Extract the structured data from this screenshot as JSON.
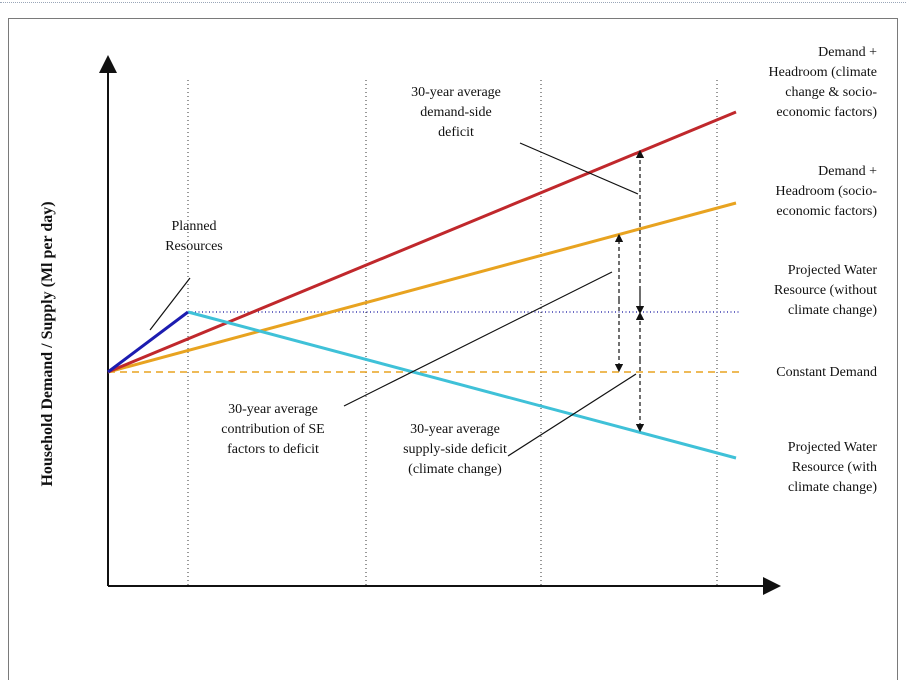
{
  "chart_data": {
    "type": "line",
    "ylabel": "Household Demand / Supply (Ml per day)",
    "x_ticks": [
      "2006",
      "2010",
      "2040",
      "2070",
      "2100"
    ],
    "series": [
      {
        "name": "Demand + Headroom (climate change & socio-economic factors)",
        "color": "#c0282c",
        "x": [
          2006,
          2103
        ],
        "y": [
          0,
          10
        ]
      },
      {
        "name": "Demand + Headroom (socio-economic factors)",
        "color": "#e8a320",
        "x": [
          2006,
          2103
        ],
        "y": [
          0,
          6.9
        ]
      },
      {
        "name": "Projected Water Resource (without climate change)",
        "color": "#3a3ab0",
        "style": "dotted",
        "x": [
          2010,
          2103
        ],
        "y": [
          2.6,
          2.6
        ]
      },
      {
        "name": "Constant Demand",
        "color": "#e8a320",
        "style": "dashed",
        "x": [
          2006,
          2103
        ],
        "y": [
          0,
          0
        ]
      },
      {
        "name": "Projected Water Resource (with climate change)",
        "color": "#3fc1d8",
        "x": [
          2010,
          2103
        ],
        "y": [
          2.6,
          -3.7
        ]
      },
      {
        "name": "Planned Resources",
        "color": "#1c1cb0",
        "x": [
          2006,
          2010
        ],
        "y": [
          0,
          2.6
        ]
      }
    ],
    "label_lines": {
      "demand_cc": [
        "Demand +",
        "Headroom (climate",
        "change & socio-",
        "economic factors)"
      ],
      "demand_se": [
        "Demand +",
        "Headroom (socio-",
        "economic factors)"
      ],
      "resource_no_cc": [
        "Projected Water",
        "Resource (without",
        "climate change)"
      ],
      "constant_demand": [
        "Constant Demand"
      ],
      "resource_cc": [
        "Projected Water",
        "Resource (with",
        "climate change)"
      ],
      "planned": [
        "Planned",
        "Resources"
      ],
      "demand_side_deficit": [
        "30-year average",
        "demand-side",
        "deficit"
      ],
      "se_contribution": [
        "30-year average",
        "contribution of SE",
        "factors to deficit"
      ],
      "supply_side_deficit": [
        "30-year average",
        "supply-side deficit",
        "(climate change)"
      ]
    },
    "grid": "vertical dotted lines at 2010, 2040, 2070, 2100"
  }
}
